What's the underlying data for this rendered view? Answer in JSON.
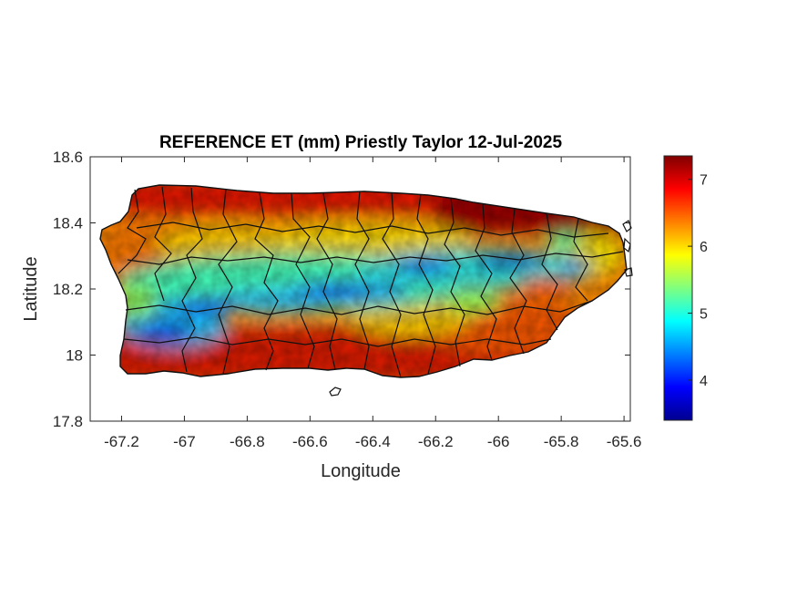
{
  "chart_data": {
    "type": "heatmap",
    "title": "REFERENCE ET (mm) Priestly Taylor 12-Jul-2025",
    "xlabel": "Longitude",
    "ylabel": "Latitude",
    "xlim": [
      -67.3,
      -65.58
    ],
    "ylim": [
      17.8,
      18.6
    ],
    "x_ticks": [
      -67.2,
      -67,
      -66.8,
      -66.6,
      -66.4,
      -66.2,
      -66,
      -65.8,
      -65.6
    ],
    "x_tick_labels": [
      "-67.2",
      "-67",
      "-66.8",
      "-66.6",
      "-66.4",
      "-66.2",
      "-66",
      "-65.8",
      "-65.6"
    ],
    "y_ticks": [
      17.8,
      18,
      18.2,
      18.4,
      18.6
    ],
    "y_tick_labels": [
      "17.8",
      "18",
      "18.2",
      "18.4",
      "18.6"
    ],
    "colormap": "jet",
    "colorbar": {
      "range": [
        3.4,
        7.35
      ],
      "ticks": [
        4,
        5,
        6,
        7
      ],
      "tick_labels": [
        "4",
        "5",
        "6",
        "7"
      ]
    },
    "grid": false,
    "region": "Puerto Rico",
    "field_description": {
      "high_values_mm": [
        6.8,
        7.35
      ],
      "high_regions": [
        "northeast coast",
        "south coast",
        "north coast"
      ],
      "low_values_mm": [
        3.4,
        4.5
      ],
      "low_regions": [
        "central cordillera",
        "southwest interior",
        "east-central interior"
      ]
    }
  }
}
